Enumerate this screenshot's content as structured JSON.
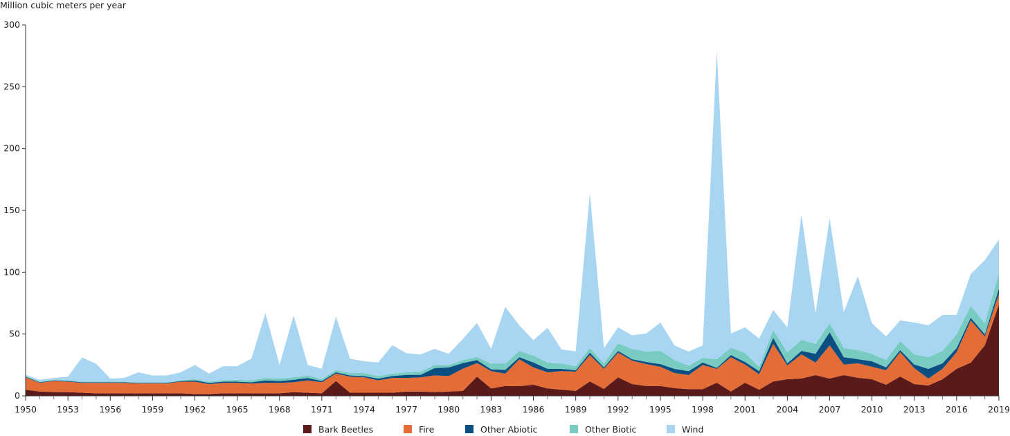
{
  "chart_data": {
    "type": "area",
    "stacked": true,
    "title": "",
    "xlabel": "",
    "ylabel": "Million cubic meters per year",
    "xlim": [
      1950,
      2019
    ],
    "ylim": [
      0,
      300
    ],
    "yticks": [
      0,
      50,
      100,
      150,
      200,
      250,
      300
    ],
    "xtick_labels": [
      1950,
      1953,
      1956,
      1959,
      1962,
      1965,
      1968,
      1971,
      1974,
      1977,
      1980,
      1983,
      1986,
      1989,
      1992,
      1995,
      1998,
      2001,
      2004,
      2007,
      2010,
      2013,
      2016,
      2019
    ],
    "grid": false,
    "legend_position": "bottom",
    "x": [
      1950,
      1951,
      1952,
      1953,
      1954,
      1955,
      1956,
      1957,
      1958,
      1959,
      1960,
      1961,
      1962,
      1963,
      1964,
      1965,
      1966,
      1967,
      1968,
      1969,
      1970,
      1971,
      1972,
      1973,
      1974,
      1975,
      1976,
      1977,
      1978,
      1979,
      1980,
      1981,
      1982,
      1983,
      1984,
      1985,
      1986,
      1987,
      1988,
      1989,
      1990,
      1991,
      1992,
      1993,
      1994,
      1995,
      1996,
      1997,
      1998,
      1999,
      2000,
      2001,
      2002,
      2003,
      2004,
      2005,
      2006,
      2007,
      2008,
      2009,
      2010,
      2011,
      2012,
      2013,
      2014,
      2015,
      2016,
      2017,
      2018,
      2019
    ],
    "series": [
      {
        "name": "Bark Beetles",
        "color": "#5a1a19",
        "values": [
          5,
          3.5,
          3,
          3,
          2.5,
          2,
          2,
          2,
          2,
          2,
          2,
          2,
          1.5,
          1.5,
          2,
          2,
          2,
          2,
          2,
          3,
          2.5,
          2,
          12,
          2.5,
          2.5,
          2.5,
          2.5,
          3.5,
          3.5,
          3,
          3.5,
          4,
          15.5,
          6,
          8,
          7.8,
          9,
          6,
          5,
          4,
          11.7,
          5.6,
          15,
          9.5,
          8,
          8,
          6.2,
          5.4,
          5.4,
          10.6,
          3.5,
          10.6,
          5,
          11.7,
          13.4,
          14,
          16.8,
          14,
          16.8,
          14.6,
          13.4,
          9,
          15.7,
          9.5,
          8.4,
          13.4,
          21.8,
          26.9,
          40.8,
          73.9
        ]
      },
      {
        "name": "Fire",
        "color": "#e36c37",
        "values": [
          10,
          7,
          9,
          8.5,
          8,
          8.5,
          8.5,
          8.5,
          8,
          8,
          8,
          9.5,
          10,
          8,
          8.5,
          8.5,
          8,
          8.5,
          8.5,
          8,
          10,
          9,
          6,
          13,
          12.5,
          10,
          12,
          11,
          11.5,
          13.5,
          12.5,
          18,
          11,
          14,
          10,
          21.8,
          14,
          13,
          15,
          15.6,
          21.3,
          16.2,
          20,
          19,
          17.7,
          15.5,
          12.3,
          11.4,
          19.6,
          11.2,
          27.8,
          14.7,
          12.4,
          30.3,
          11.2,
          19.6,
          10.1,
          26.8,
          8.5,
          11.7,
          10.1,
          11.7,
          19.6,
          12.9,
          5.6,
          8.4,
          13.5,
          34.1,
          7.2,
          8.4
        ]
      },
      {
        "name": "Other Abiotic",
        "color": "#0b4f82",
        "values": [
          0.5,
          0.5,
          0.5,
          0.5,
          0.5,
          0.5,
          0.5,
          0.5,
          0.5,
          0.5,
          0.5,
          0.5,
          1,
          1,
          1,
          1,
          1,
          2,
          1.5,
          2,
          2,
          1,
          1,
          1,
          1,
          1.5,
          1.5,
          2.5,
          2,
          6,
          7,
          4.5,
          2.5,
          1.5,
          3,
          1.7,
          4,
          2.8,
          1.8,
          1.1,
          2,
          1.2,
          1.4,
          1.2,
          1.7,
          2.2,
          3.3,
          3.2,
          2,
          0.9,
          1.7,
          2.1,
          2.6,
          5,
          1.7,
          2.8,
          7.1,
          10.7,
          6,
          3.4,
          4.5,
          2.3,
          1.7,
          2.9,
          7.8,
          4.5,
          3.3,
          2.2,
          1.8,
          4.4
        ]
      },
      {
        "name": "Other Biotic",
        "color": "#78cbc0",
        "values": [
          0.5,
          0.5,
          0.5,
          0.5,
          0.5,
          0.5,
          0.5,
          0.5,
          0.5,
          0.5,
          0.5,
          0.5,
          1,
          1,
          1,
          1.5,
          1.5,
          2,
          2,
          2,
          2,
          1.5,
          2,
          2,
          2.5,
          2,
          2,
          2,
          2.5,
          2.5,
          2,
          2.5,
          2.5,
          4.5,
          5,
          5.1,
          5.5,
          5.2,
          4.2,
          3.3,
          3.6,
          3.3,
          6.1,
          8.3,
          8.4,
          10.7,
          7.2,
          4.3,
          3.8,
          7,
          6,
          7.3,
          3.5,
          6,
          9,
          8.9,
          8,
          7.3,
          7.3,
          7.3,
          6,
          6,
          7.2,
          8.3,
          9.5,
          10.1,
          11.2,
          9.5,
          9,
          12.3
        ]
      },
      {
        "name": "Wind",
        "color": "#a8d5f2",
        "values": [
          1,
          1.5,
          1.5,
          3,
          19.5,
          14.5,
          2.5,
          3,
          8,
          5.5,
          5.5,
          6.5,
          11.5,
          6.5,
          11.5,
          11,
          17.5,
          52.5,
          11,
          50,
          8.5,
          8.5,
          43,
          11.5,
          9.5,
          11,
          23,
          15.5,
          14,
          13,
          9,
          17,
          27.5,
          12,
          46,
          20.6,
          12.5,
          28,
          11.5,
          12,
          125.4,
          12.3,
          12.9,
          11,
          14.6,
          22.9,
          11.8,
          11.5,
          10,
          249.3,
          11.4,
          20.7,
          22.9,
          16.4,
          20.1,
          101.3,
          24.6,
          85,
          29.1,
          59.8,
          24.8,
          19,
          16.8,
          25.7,
          25.7,
          29.1,
          15.7,
          25.8,
          50.9,
          27.5
        ]
      }
    ]
  }
}
